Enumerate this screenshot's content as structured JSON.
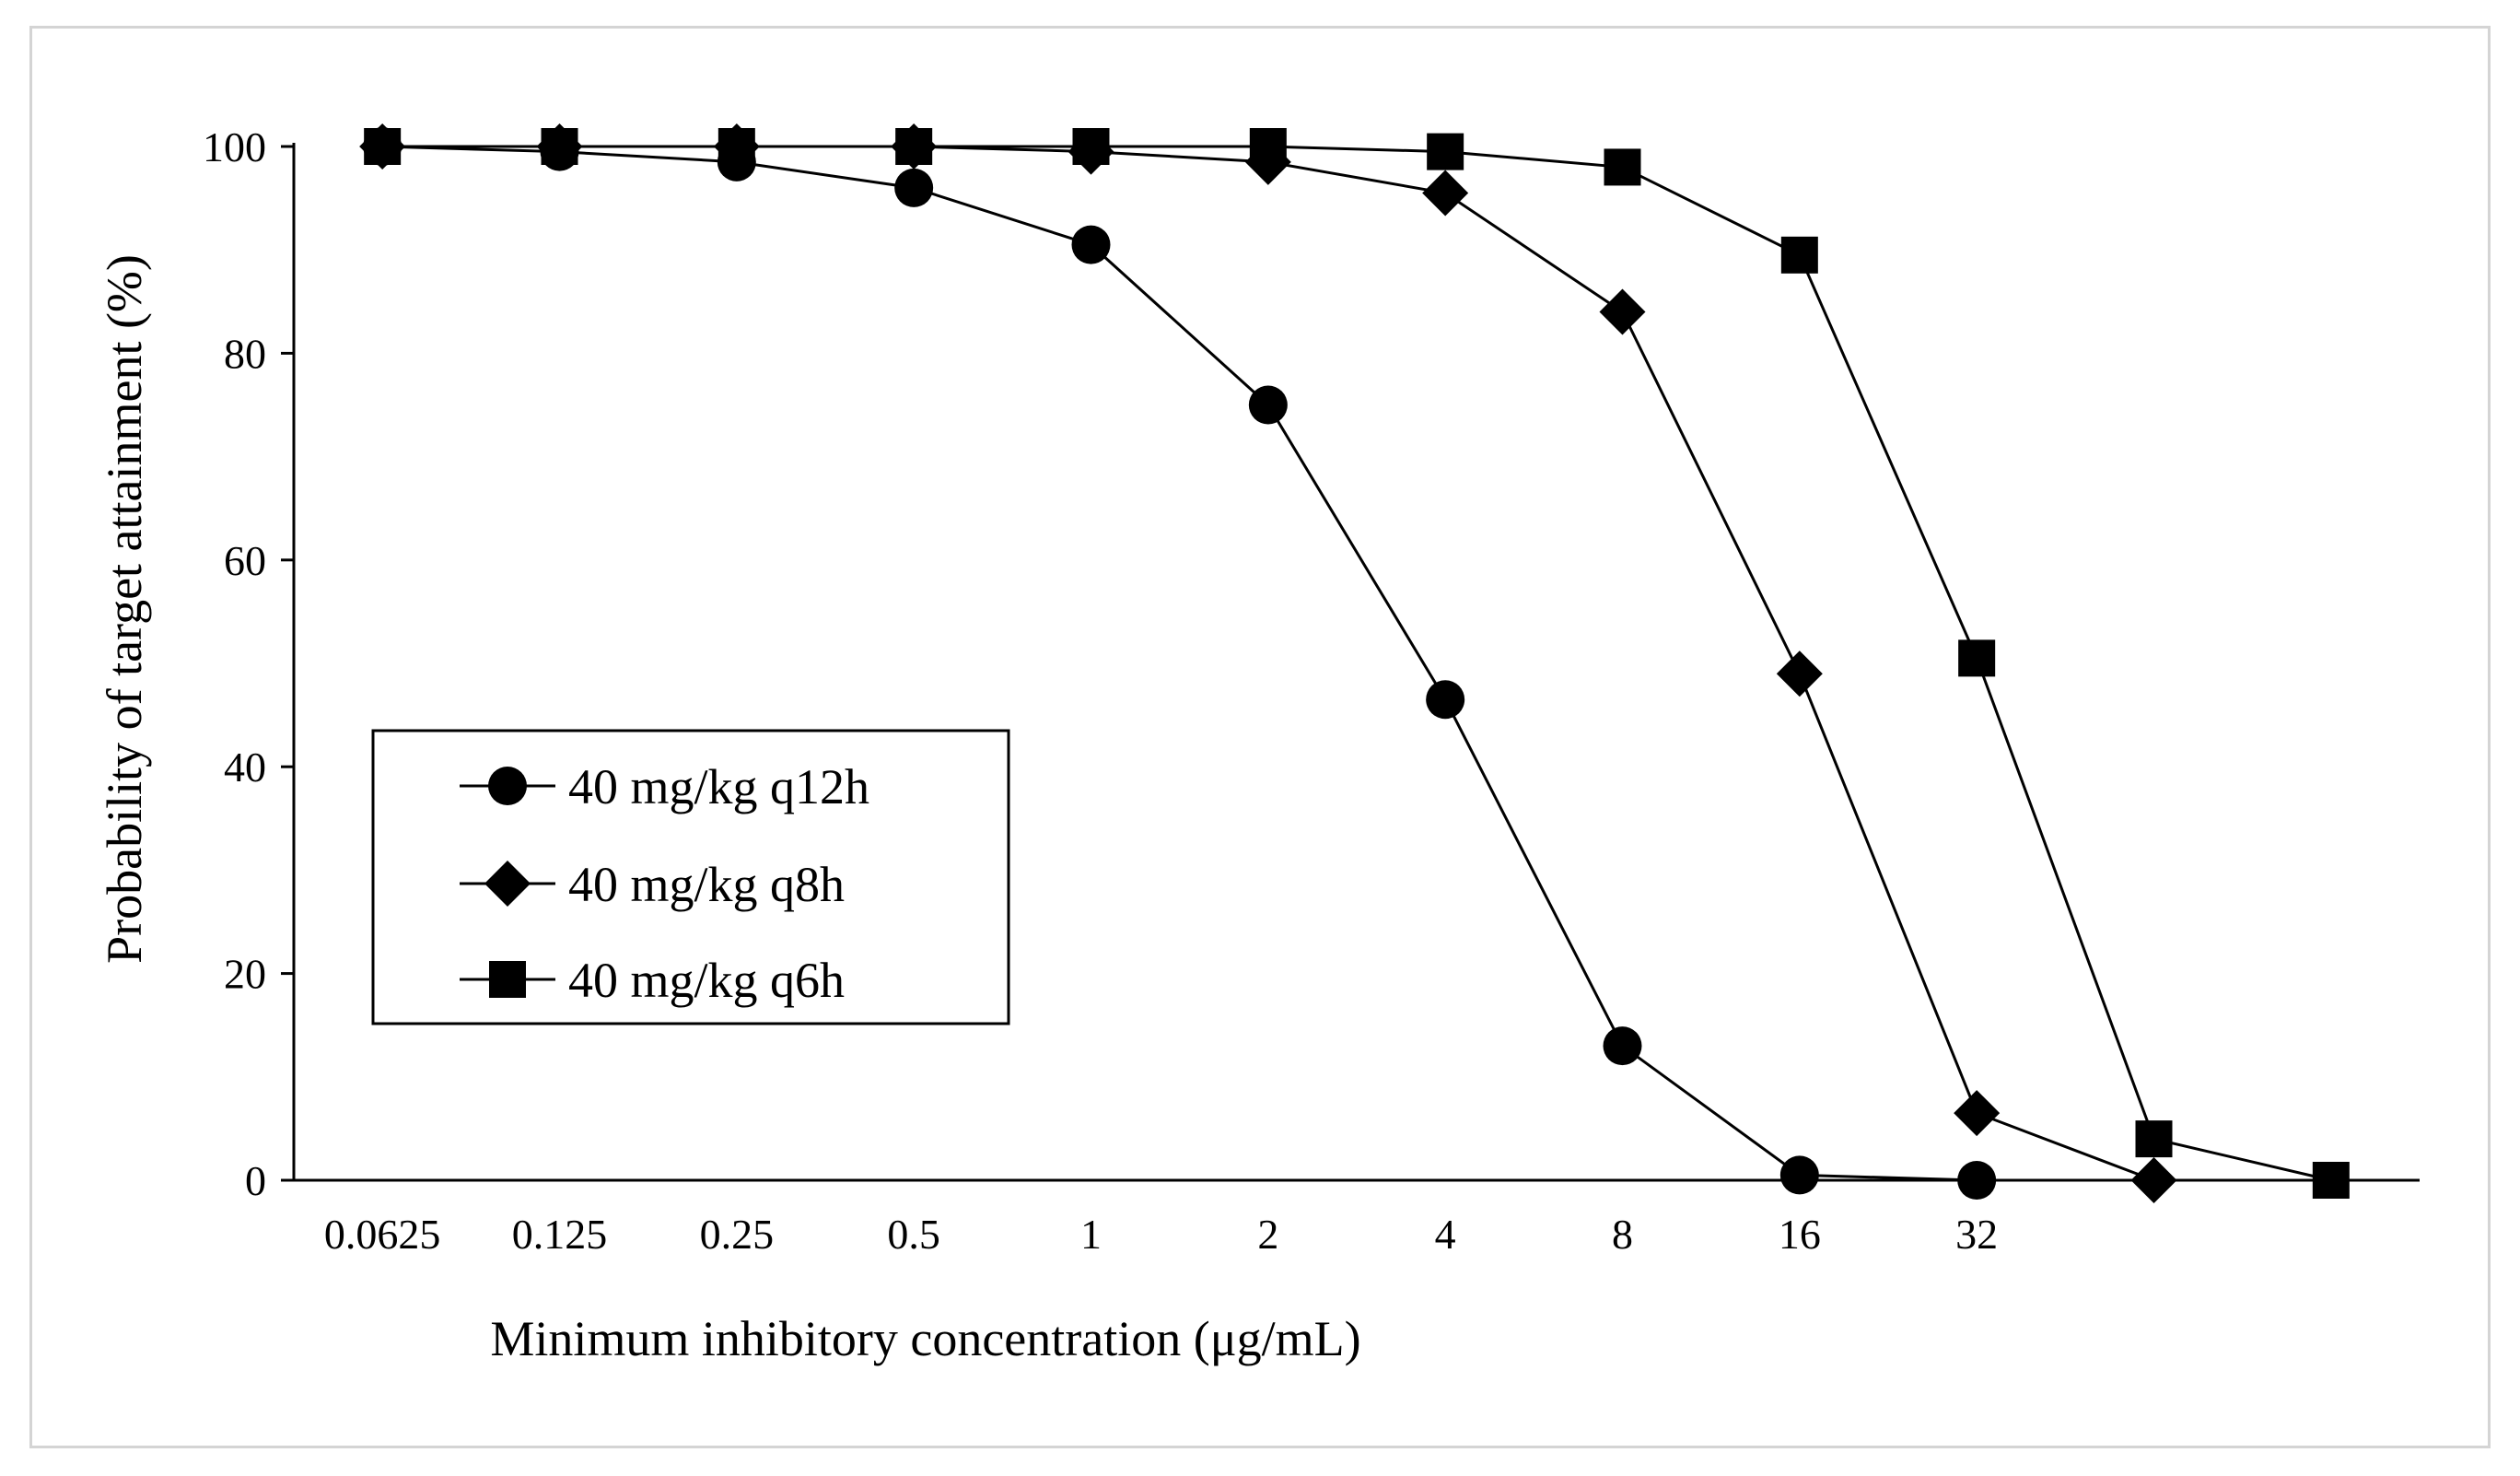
{
  "chart_data": {
    "type": "line",
    "title": "",
    "xlabel": "Minimum inhibitory concentration (μg/mL)",
    "ylabel": "Probability of target attainment (%)",
    "categories": [
      "0.0625",
      "0.125",
      "0.25",
      "0.5",
      "1",
      "2",
      "4",
      "8",
      "16",
      "32",
      "",
      ""
    ],
    "ylim": [
      0,
      100
    ],
    "yticks": [
      "0",
      "20",
      "40",
      "60",
      "80",
      "100"
    ],
    "grid": false,
    "legend_position": "center-left",
    "series": [
      {
        "name": "40 mg/kg q12h",
        "marker": "circle",
        "values": [
          100,
          99.5,
          98.5,
          96,
          90.5,
          75,
          46.5,
          13,
          0.5,
          0,
          null,
          null
        ]
      },
      {
        "name": "40 mg/kg q8h",
        "marker": "diamond",
        "values": [
          100,
          100,
          100,
          100,
          99.5,
          98.5,
          95.5,
          84,
          49,
          6.5,
          0,
          null
        ]
      },
      {
        "name": "40 mg/kg q6h",
        "marker": "square",
        "values": [
          100,
          100,
          100,
          100,
          100,
          100,
          99.5,
          98,
          89.5,
          50.5,
          4,
          0
        ]
      }
    ]
  },
  "colors": {
    "line": "#000000",
    "marker": "#000000",
    "frame": "#d4d4d4"
  }
}
